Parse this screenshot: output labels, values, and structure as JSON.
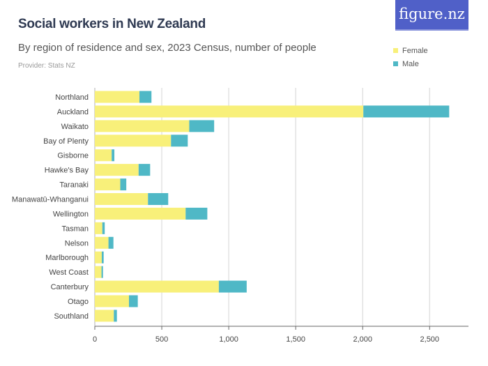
{
  "title": "Social workers in New Zealand",
  "subtitle": "By region of residence and sex, 2023 Census, number of people",
  "provider": "Provider: Stats NZ",
  "logo": "figure.nz",
  "chart_data": {
    "type": "bar",
    "orientation": "horizontal",
    "stacked": true,
    "categories": [
      "Northland",
      "Auckland",
      "Waikato",
      "Bay of Plenty",
      "Gisborne",
      "Hawke's Bay",
      "Taranaki",
      "Manawatū-Whanganui",
      "Wellington",
      "Tasman",
      "Nelson",
      "Marlborough",
      "West Coast",
      "Canterbury",
      "Otago",
      "Southland"
    ],
    "series": [
      {
        "name": "Female",
        "color": "#f8f07a",
        "values": [
          333,
          2005,
          705,
          569,
          126,
          327,
          190,
          397,
          678,
          56,
          102,
          52,
          50,
          926,
          255,
          142
        ]
      },
      {
        "name": "Male",
        "color": "#4fb8c6",
        "values": [
          90,
          641,
          186,
          125,
          20,
          86,
          45,
          151,
          162,
          18,
          37,
          14,
          11,
          208,
          66,
          23
        ]
      }
    ],
    "xlim": [
      0,
      2790
    ],
    "xticks": [
      0,
      500,
      1000,
      1500,
      2000,
      2500
    ],
    "xtick_labels": [
      "0",
      "500",
      "1,000",
      "1,500",
      "2,000",
      "2,500"
    ],
    "grid": true,
    "legend": "top-right"
  }
}
